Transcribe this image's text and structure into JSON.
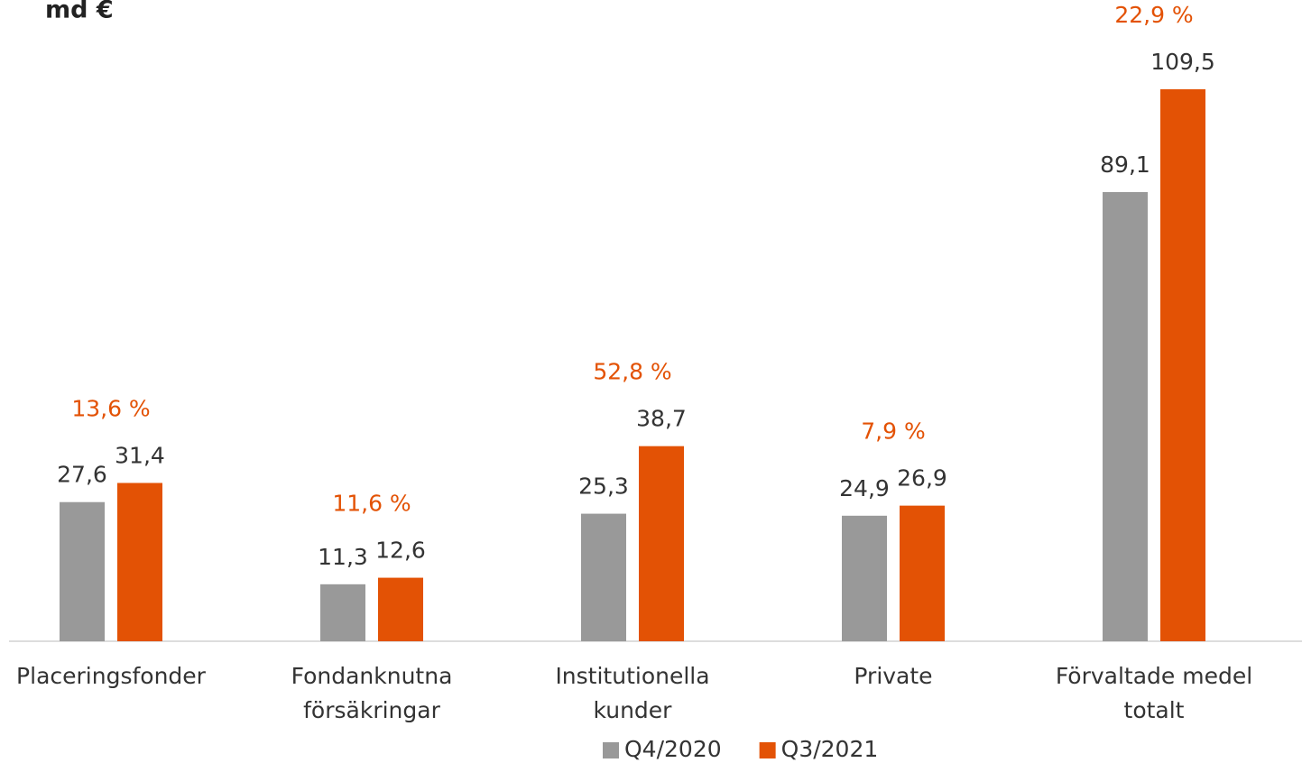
{
  "chart_data": {
    "type": "bar",
    "unit_label": "md €",
    "categories": [
      [
        "Placeringsfonder"
      ],
      [
        "Fondanknutna",
        "försäkringar"
      ],
      [
        "Institutionella",
        "kunder"
      ],
      [
        "Private"
      ],
      [
        "Förvaltade medel",
        "totalt"
      ]
    ],
    "series": [
      {
        "name": "Q4/2020",
        "color": "#999999",
        "values": [
          27.6,
          11.3,
          25.3,
          24.9,
          89.1
        ],
        "value_labels": [
          "27,6",
          "11,3",
          "25,3",
          "24,9",
          "89,1"
        ]
      },
      {
        "name": "Q3/2021",
        "color": "#e35205",
        "values": [
          31.4,
          12.6,
          38.7,
          26.9,
          109.5
        ],
        "value_labels": [
          "31,4",
          "12,6",
          "38,7",
          "26,9",
          "109,5"
        ]
      }
    ],
    "annotations": [
      {
        "value": 13.6,
        "label": "13,6 %"
      },
      {
        "value": 11.6,
        "label": "11,6 %"
      },
      {
        "value": 52.8,
        "label": "52,8 %"
      },
      {
        "value": 7.9,
        "label": "7,9 %"
      },
      {
        "value": 22.9,
        "label": "22,9 %"
      }
    ],
    "annotation_color": "#e35205",
    "ylim": [
      0,
      127.2
    ],
    "legend": "bottom"
  }
}
